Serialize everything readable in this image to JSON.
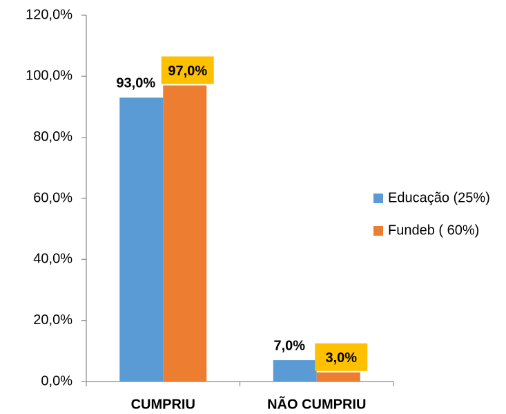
{
  "chart_data": {
    "type": "bar",
    "categories": [
      "CUMPRIU",
      "NÃO CUMPRIU"
    ],
    "series": [
      {
        "name": "Educação (25%)",
        "color": "#5b9bd5",
        "values": [
          93,
          7
        ],
        "value_labels": [
          "93,0%",
          "7,0%"
        ]
      },
      {
        "name": "Fundeb ( 60%)",
        "color": "#ed7d31",
        "values": [
          97,
          3
        ],
        "value_labels": [
          "97,0%",
          "3,0%"
        ],
        "label_background": "#ffc000"
      }
    ],
    "ylim": [
      0,
      120
    ],
    "yticks": [
      {
        "value": 0,
        "label": "0,0%"
      },
      {
        "value": 20,
        "label": "20,0%"
      },
      {
        "value": 40,
        "label": "40,0%"
      },
      {
        "value": 60,
        "label": "60,0%"
      },
      {
        "value": 80,
        "label": "80,0%"
      },
      {
        "value": 100,
        "label": "100,0%"
      },
      {
        "value": 120,
        "label": "120,0%"
      }
    ],
    "legend": "right"
  }
}
